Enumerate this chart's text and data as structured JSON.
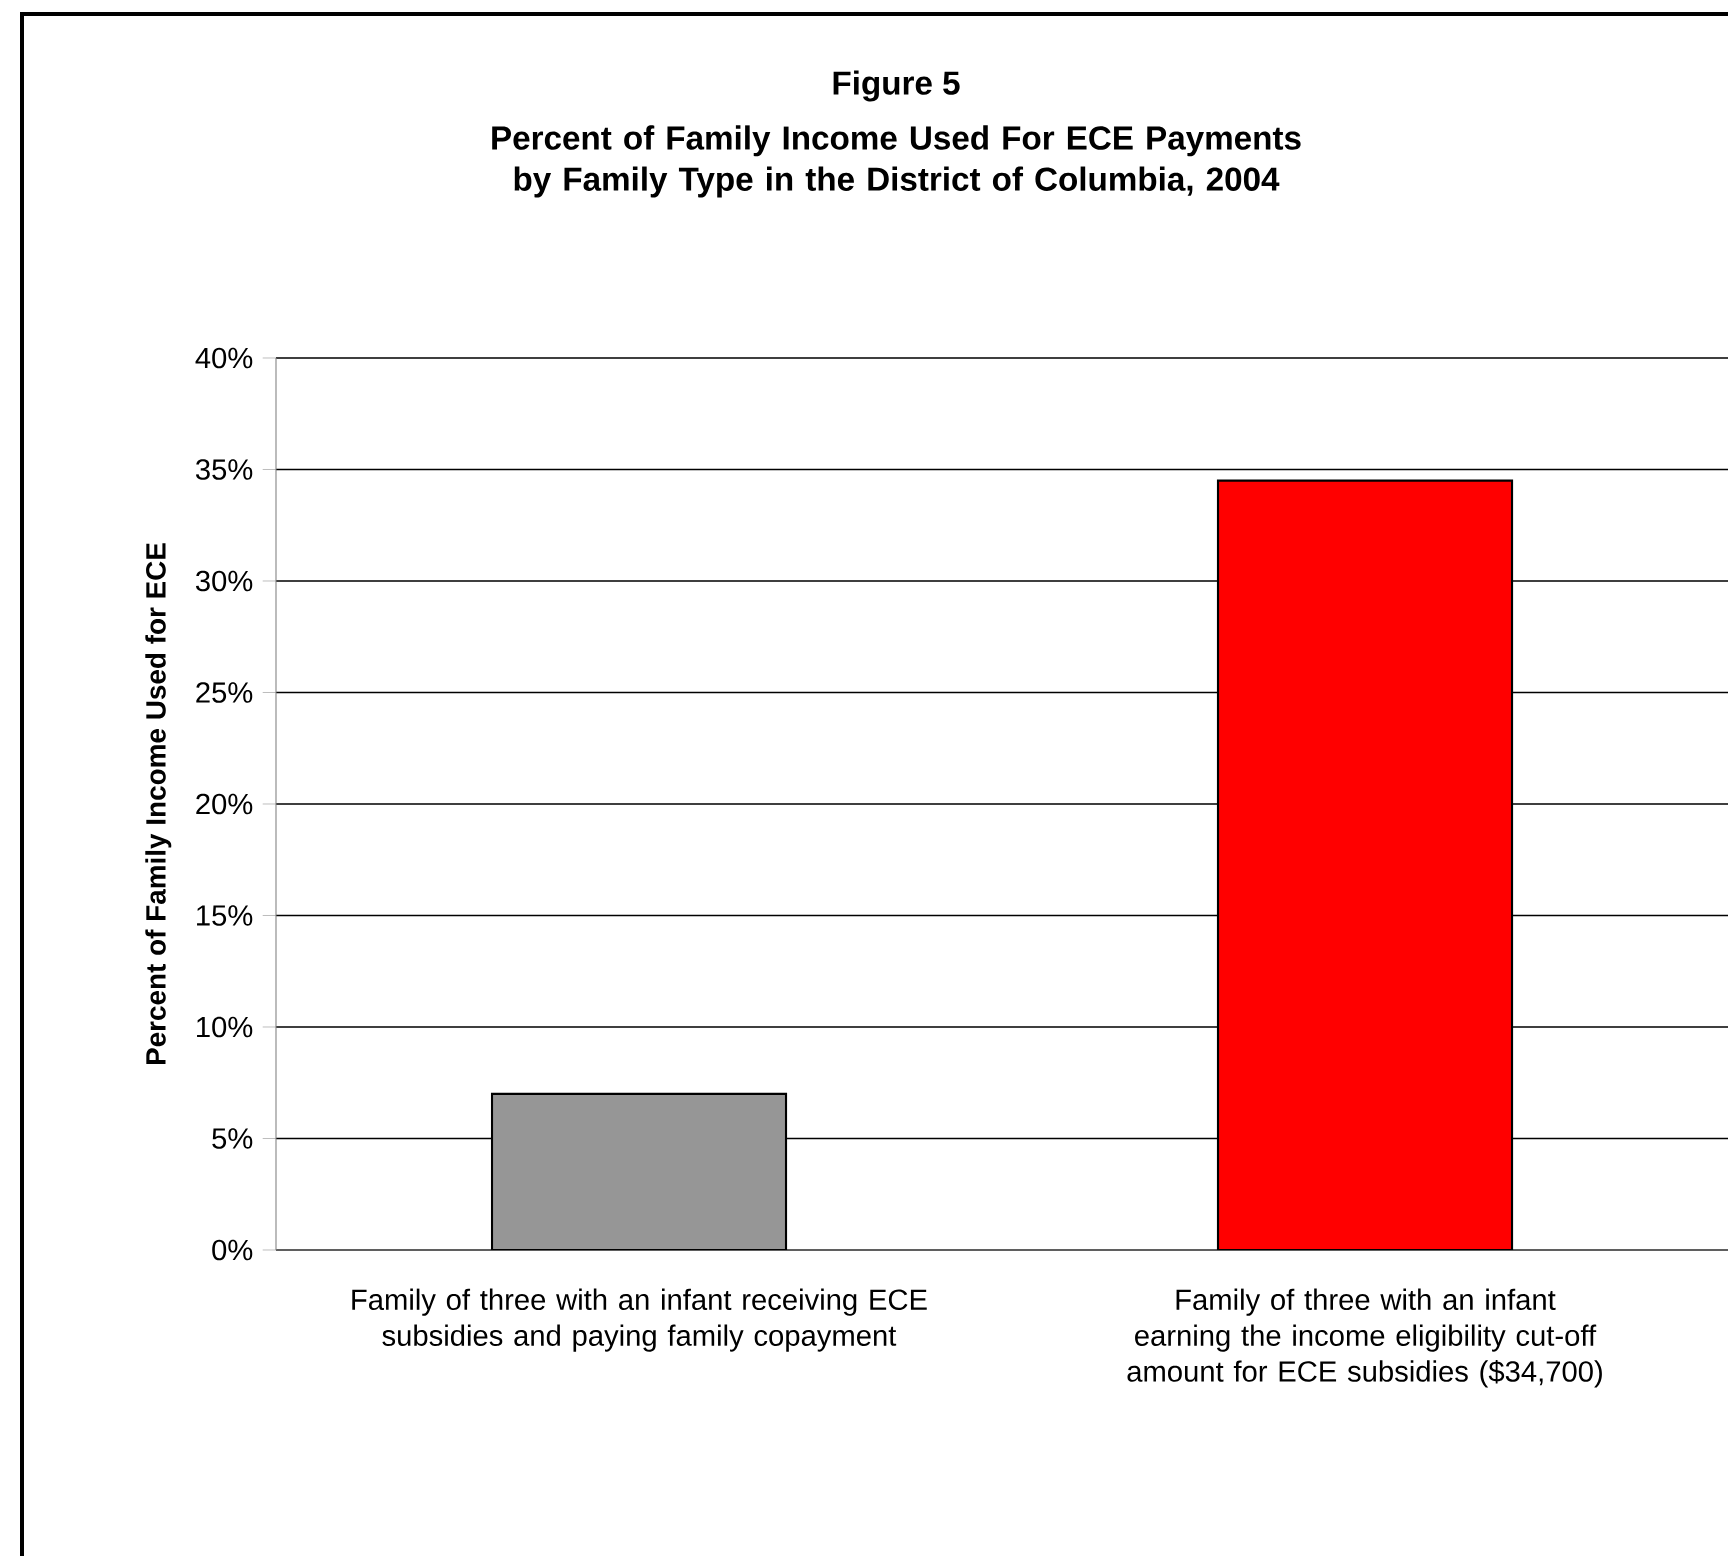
{
  "chart_data": {
    "type": "bar",
    "title": "Figure 5",
    "subtitle": "Percent of Family Income Used For ECE Payments by Family Type in the District of Columbia, 2004",
    "ylabel": "Percent of Family Income Used for ECE",
    "categories": [
      "Family of three with an infant receiving ECE subsidies and paying family copayment",
      "Family of three with an infant earning the income eligibility cut-off amount for ECE subsidies ($34,700)"
    ],
    "values": [
      7.0,
      34.5
    ],
    "colors": [
      "#969696",
      "#ff0000"
    ],
    "ylim": [
      0,
      40
    ],
    "yticks": [
      {
        "value": 0,
        "label": "0%"
      },
      {
        "value": 5,
        "label": "5%"
      },
      {
        "value": 10,
        "label": "10%"
      },
      {
        "value": 15,
        "label": "15%"
      },
      {
        "value": 20,
        "label": "20%"
      },
      {
        "value": 25,
        "label": "25%"
      },
      {
        "value": 30,
        "label": "30%"
      },
      {
        "value": 35,
        "label": "35%"
      },
      {
        "value": 40,
        "label": "40%"
      }
    ],
    "grid": "y"
  }
}
